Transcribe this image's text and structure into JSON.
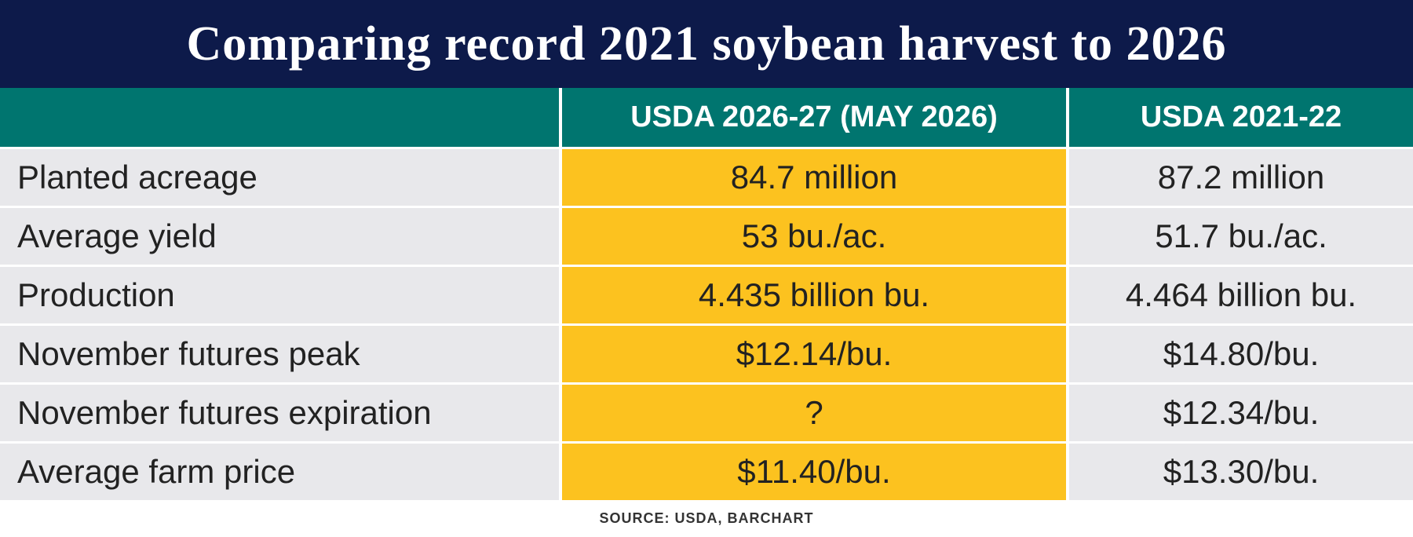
{
  "title": "Comparing record 2021 soybean harvest to 2026",
  "table": {
    "columns": [
      "USDA 2026-27 (MAY 2026)",
      "USDA 2021-22"
    ],
    "rows": [
      {
        "label": "Planted acreage",
        "values": [
          "84.7 million",
          "87.2 million"
        ]
      },
      {
        "label": "Average yield",
        "values": [
          "53 bu./ac.",
          "51.7 bu./ac."
        ]
      },
      {
        "label": "Production",
        "values": [
          "4.435 billion bu.",
          "4.464 billion bu."
        ]
      },
      {
        "label": "November futures peak",
        "values": [
          "$12.14/bu.",
          "$14.80/bu."
        ]
      },
      {
        "label": "November futures expiration",
        "values": [
          "?",
          "$12.34/bu."
        ]
      },
      {
        "label": "Average farm price",
        "values": [
          "$11.40/bu.",
          "$13.30/bu."
        ]
      }
    ]
  },
  "source": "SOURCE: USDA, BARCHART"
}
